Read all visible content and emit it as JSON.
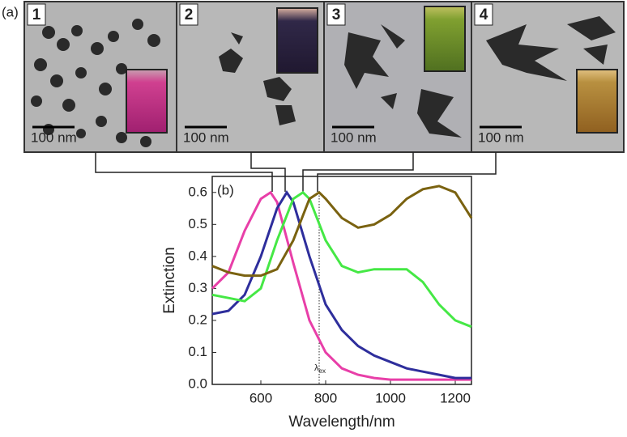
{
  "figure": {
    "panel_a_label": "(a)",
    "panels": [
      {
        "number": "1",
        "scale": "100 nm"
      },
      {
        "number": "2",
        "scale": "100 nm"
      },
      {
        "number": "3",
        "scale": "100 nm"
      },
      {
        "number": "4",
        "scale": "100 nm"
      }
    ]
  },
  "chart_data": {
    "type": "line",
    "panel_label": "(b)",
    "x_label": "Wavelength/nm",
    "y_label": "Extinction",
    "xlim": [
      450,
      1250
    ],
    "xticks": [
      600,
      800,
      1000,
      1200
    ],
    "ylim": [
      0,
      0.65
    ],
    "yticks": [
      {
        "value": 0,
        "label": "0.0"
      },
      0.1,
      0.2,
      0.3,
      0.4,
      0.5,
      0.6
    ],
    "lambda_ex": 780,
    "lambda_ex_symbol": "λ",
    "lambda_ex_subscript": "ex",
    "series": [
      {
        "color": "#e83fa8",
        "x": [
          450,
          500,
          550,
          600,
          630,
          650,
          700,
          750,
          800,
          850,
          900,
          950,
          1000,
          1100,
          1250
        ],
        "values": [
          0.3,
          0.35,
          0.48,
          0.58,
          0.6,
          0.57,
          0.38,
          0.2,
          0.1,
          0.05,
          0.03,
          0.02,
          0.015,
          0.015,
          0.015
        ]
      },
      {
        "color": "#2e2e9c",
        "x": [
          450,
          500,
          550,
          600,
          650,
          680,
          700,
          750,
          800,
          850,
          900,
          950,
          1000,
          1050,
          1100,
          1150,
          1200,
          1250
        ],
        "values": [
          0.22,
          0.23,
          0.28,
          0.4,
          0.55,
          0.6,
          0.57,
          0.4,
          0.25,
          0.17,
          0.12,
          0.09,
          0.07,
          0.05,
          0.04,
          0.03,
          0.02,
          0.02
        ]
      },
      {
        "color": "#45e845",
        "x": [
          450,
          500,
          550,
          600,
          650,
          700,
          730,
          750,
          800,
          850,
          900,
          950,
          1000,
          1050,
          1100,
          1150,
          1200,
          1250
        ],
        "values": [
          0.28,
          0.27,
          0.26,
          0.3,
          0.45,
          0.58,
          0.6,
          0.58,
          0.45,
          0.37,
          0.35,
          0.36,
          0.36,
          0.36,
          0.32,
          0.25,
          0.2,
          0.18
        ]
      },
      {
        "color": "#7a6210",
        "x": [
          450,
          500,
          550,
          600,
          650,
          700,
          750,
          780,
          800,
          850,
          900,
          950,
          1000,
          1050,
          1100,
          1150,
          1200,
          1250
        ],
        "values": [
          0.37,
          0.35,
          0.34,
          0.34,
          0.36,
          0.45,
          0.58,
          0.6,
          0.58,
          0.52,
          0.49,
          0.5,
          0.53,
          0.58,
          0.61,
          0.62,
          0.6,
          0.52
        ]
      }
    ]
  }
}
